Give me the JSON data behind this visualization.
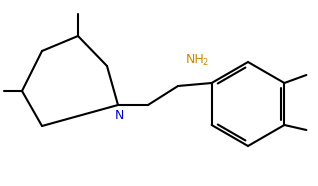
{
  "background_color": "#ffffff",
  "bond_color": "#000000",
  "N_color": "#0000cc",
  "NH2_color": "#cc8800",
  "line_width": 1.5,
  "figsize": [
    3.18,
    1.86
  ],
  "dpi": 100
}
